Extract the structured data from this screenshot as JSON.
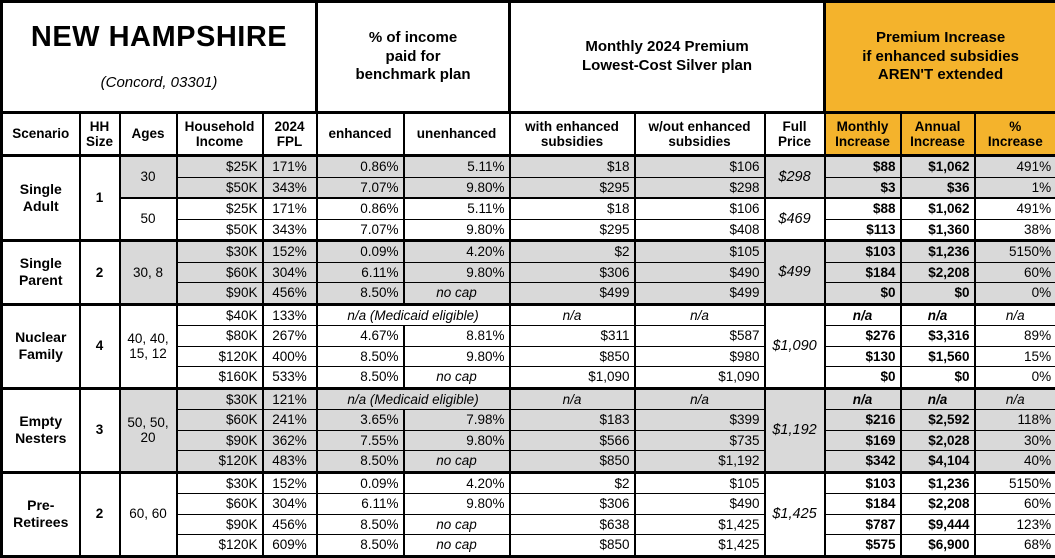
{
  "colors": {
    "accent_orange": "#F4B32C",
    "shaded_gray": "#D9D9D9",
    "border_black": "#000000"
  },
  "header": {
    "title": "NEW HAMPSHIRE",
    "subtitle": "(Concord, 03301)",
    "groups": {
      "benchmark": "% of income\npaid for\nbenchmark plan",
      "premium": "Monthly 2024 Premium\nLowest-Cost Silver plan",
      "increase": "Premium Increase\nif enhanced subsidies\nAREN'T extended"
    }
  },
  "columns": {
    "scenario": "Scenario",
    "hh_size": "HH\nSize",
    "ages": "Ages",
    "income": "Household\nIncome",
    "fpl": "2024\nFPL",
    "enhanced": "enhanced",
    "unenhanced": "unenhanced",
    "with_sub": "with enhanced\nsubsidies",
    "wout_sub": "w/out enhanced\nsubsidies",
    "full_price": "Full\nPrice",
    "monthly": "Monthly\nIncrease",
    "annual": "Annual\nIncrease",
    "pct": "%\nIncrease"
  },
  "scenarios": [
    {
      "name": "Single Adult",
      "hh_size": "1",
      "blocks": [
        {
          "ages": "30",
          "shaded": true,
          "full_price": "$298",
          "rows": [
            {
              "income": "$25K",
              "fpl": "171%",
              "enhanced": "0.86%",
              "unenhanced": "5.11%",
              "with_sub": "$18",
              "wout_sub": "$106",
              "monthly": "$88",
              "annual": "$1,062",
              "pct": "491%"
            },
            {
              "income": "$50K",
              "fpl": "343%",
              "enhanced": "7.07%",
              "unenhanced": "9.80%",
              "with_sub": "$295",
              "wout_sub": "$298",
              "monthly": "$3",
              "annual": "$36",
              "pct": "1%"
            }
          ]
        },
        {
          "ages": "50",
          "shaded": false,
          "full_price": "$469",
          "rows": [
            {
              "income": "$25K",
              "fpl": "171%",
              "enhanced": "0.86%",
              "unenhanced": "5.11%",
              "with_sub": "$18",
              "wout_sub": "$106",
              "monthly": "$88",
              "annual": "$1,062",
              "pct": "491%"
            },
            {
              "income": "$50K",
              "fpl": "343%",
              "enhanced": "7.07%",
              "unenhanced": "9.80%",
              "with_sub": "$295",
              "wout_sub": "$408",
              "monthly": "$113",
              "annual": "$1,360",
              "pct": "38%"
            }
          ]
        }
      ]
    },
    {
      "name": "Single Parent",
      "hh_size": "2",
      "blocks": [
        {
          "ages": "30, 8",
          "shaded": true,
          "full_price": "$499",
          "rows": [
            {
              "income": "$30K",
              "fpl": "152%",
              "enhanced": "0.09%",
              "unenhanced": "4.20%",
              "with_sub": "$2",
              "wout_sub": "$105",
              "monthly": "$103",
              "annual": "$1,236",
              "pct": "5150%"
            },
            {
              "income": "$60K",
              "fpl": "304%",
              "enhanced": "6.11%",
              "unenhanced": "9.80%",
              "with_sub": "$306",
              "wout_sub": "$490",
              "monthly": "$184",
              "annual": "$2,208",
              "pct": "60%"
            },
            {
              "income": "$90K",
              "fpl": "456%",
              "enhanced": "8.50%",
              "unenhanced": "no cap",
              "nocap": true,
              "with_sub": "$499",
              "wout_sub": "$499",
              "monthly": "$0",
              "annual": "$0",
              "pct": "0%"
            }
          ]
        }
      ]
    },
    {
      "name": "Nuclear Family",
      "hh_size": "4",
      "blocks": [
        {
          "ages": "40, 40, 15, 12",
          "shaded": false,
          "full_price": "$1,090",
          "rows": [
            {
              "income": "$40K",
              "fpl": "133%",
              "medicaid": "n/a (Medicaid eligible)",
              "na": true,
              "with_sub": "n/a",
              "wout_sub": "n/a",
              "monthly": "n/a",
              "annual": "n/a",
              "pct": "n/a"
            },
            {
              "income": "$80K",
              "fpl": "267%",
              "enhanced": "4.67%",
              "unenhanced": "8.81%",
              "with_sub": "$311",
              "wout_sub": "$587",
              "monthly": "$276",
              "annual": "$3,316",
              "pct": "89%"
            },
            {
              "income": "$120K",
              "fpl": "400%",
              "enhanced": "8.50%",
              "unenhanced": "9.80%",
              "with_sub": "$850",
              "wout_sub": "$980",
              "monthly": "$130",
              "annual": "$1,560",
              "pct": "15%"
            },
            {
              "income": "$160K",
              "fpl": "533%",
              "enhanced": "8.50%",
              "unenhanced": "no cap",
              "nocap": true,
              "with_sub": "$1,090",
              "wout_sub": "$1,090",
              "monthly": "$0",
              "annual": "$0",
              "pct": "0%"
            }
          ]
        }
      ]
    },
    {
      "name": "Empty Nesters",
      "hh_size": "3",
      "blocks": [
        {
          "ages": "50, 50, 20",
          "shaded": true,
          "full_price": "$1,192",
          "rows": [
            {
              "income": "$30K",
              "fpl": "121%",
              "medicaid": "n/a (Medicaid eligible)",
              "na": true,
              "with_sub": "n/a",
              "wout_sub": "n/a",
              "monthly": "n/a",
              "annual": "n/a",
              "pct": "n/a"
            },
            {
              "income": "$60K",
              "fpl": "241%",
              "enhanced": "3.65%",
              "unenhanced": "7.98%",
              "with_sub": "$183",
              "wout_sub": "$399",
              "monthly": "$216",
              "annual": "$2,592",
              "pct": "118%"
            },
            {
              "income": "$90K",
              "fpl": "362%",
              "enhanced": "7.55%",
              "unenhanced": "9.80%",
              "with_sub": "$566",
              "wout_sub": "$735",
              "monthly": "$169",
              "annual": "$2,028",
              "pct": "30%"
            },
            {
              "income": "$120K",
              "fpl": "483%",
              "enhanced": "8.50%",
              "unenhanced": "no cap",
              "nocap": true,
              "with_sub": "$850",
              "wout_sub": "$1,192",
              "monthly": "$342",
              "annual": "$4,104",
              "pct": "40%"
            }
          ]
        }
      ]
    },
    {
      "name": "Pre-Retirees",
      "hh_size": "2",
      "blocks": [
        {
          "ages": "60, 60",
          "shaded": false,
          "full_price": "$1,425",
          "rows": [
            {
              "income": "$30K",
              "fpl": "152%",
              "enhanced": "0.09%",
              "unenhanced": "4.20%",
              "with_sub": "$2",
              "wout_sub": "$105",
              "monthly": "$103",
              "annual": "$1,236",
              "pct": "5150%"
            },
            {
              "income": "$60K",
              "fpl": "304%",
              "enhanced": "6.11%",
              "unenhanced": "9.80%",
              "with_sub": "$306",
              "wout_sub": "$490",
              "monthly": "$184",
              "annual": "$2,208",
              "pct": "60%"
            },
            {
              "income": "$90K",
              "fpl": "456%",
              "enhanced": "8.50%",
              "unenhanced": "no cap",
              "nocap": true,
              "with_sub": "$638",
              "wout_sub": "$1,425",
              "monthly": "$787",
              "annual": "$9,444",
              "pct": "123%"
            },
            {
              "income": "$120K",
              "fpl": "609%",
              "enhanced": "8.50%",
              "unenhanced": "no cap",
              "nocap": true,
              "with_sub": "$850",
              "wout_sub": "$1,425",
              "monthly": "$575",
              "annual": "$6,900",
              "pct": "68%"
            }
          ]
        }
      ]
    }
  ]
}
